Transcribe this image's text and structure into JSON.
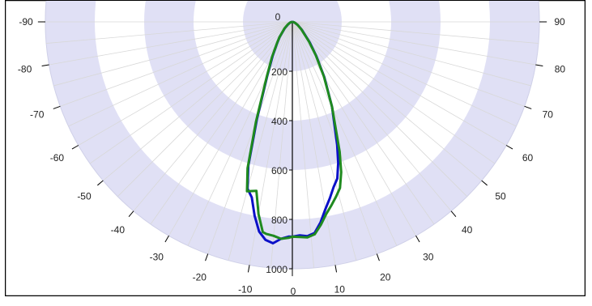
{
  "chart_data": {
    "type": "polar-line",
    "angle_axis": {
      "ticks": [
        -90,
        -80,
        -70,
        -60,
        -50,
        -40,
        -30,
        -20,
        -10,
        0,
        10,
        20,
        30,
        40,
        50,
        60,
        70,
        80,
        90
      ],
      "range": [
        -90,
        90
      ],
      "direction": "down"
    },
    "radial_axis": {
      "ticks": [
        0,
        200,
        400,
        600,
        800,
        1000
      ],
      "range": [
        0,
        1000
      ],
      "grid": true,
      "band_fill": "#e0e0f5"
    },
    "series": [
      {
        "color": "#0b10c8",
        "points": [
          [
            -90,
            0
          ],
          [
            -80,
            5
          ],
          [
            -70,
            10
          ],
          [
            -60,
            20
          ],
          [
            -50,
            40
          ],
          [
            -40,
            80
          ],
          [
            -35,
            110
          ],
          [
            -30,
            160
          ],
          [
            -25,
            240
          ],
          [
            -20,
            420
          ],
          [
            -17,
            610
          ],
          [
            -15,
            700
          ],
          [
            -13,
            730
          ],
          [
            -11,
            800
          ],
          [
            -9,
            860
          ],
          [
            -7,
            890
          ],
          [
            -5,
            900
          ],
          [
            -3,
            880
          ],
          [
            -1,
            870
          ],
          [
            0,
            870
          ],
          [
            2,
            865
          ],
          [
            4,
            870
          ],
          [
            6,
            860
          ],
          [
            8,
            820
          ],
          [
            10,
            770
          ],
          [
            12,
            730
          ],
          [
            14,
            690
          ],
          [
            16,
            660
          ],
          [
            18,
            600
          ],
          [
            20,
            530
          ],
          [
            25,
            380
          ],
          [
            30,
            260
          ],
          [
            35,
            170
          ],
          [
            40,
            110
          ],
          [
            50,
            50
          ],
          [
            60,
            25
          ],
          [
            70,
            12
          ],
          [
            80,
            5
          ],
          [
            90,
            0
          ]
        ]
      },
      {
        "color": "#1f8a1f",
        "points": [
          [
            -90,
            0
          ],
          [
            -80,
            5
          ],
          [
            -70,
            10
          ],
          [
            -60,
            22
          ],
          [
            -50,
            42
          ],
          [
            -40,
            82
          ],
          [
            -35,
            112
          ],
          [
            -30,
            165
          ],
          [
            -25,
            245
          ],
          [
            -20,
            430
          ],
          [
            -17,
            620
          ],
          [
            -15,
            710
          ],
          [
            -12,
            700
          ],
          [
            -10,
            790
          ],
          [
            -8,
            860
          ],
          [
            -7,
            865
          ],
          [
            -5,
            870
          ],
          [
            -3,
            880
          ],
          [
            -1,
            875
          ],
          [
            0,
            870
          ],
          [
            2,
            872
          ],
          [
            4,
            875
          ],
          [
            6,
            865
          ],
          [
            8,
            830
          ],
          [
            10,
            790
          ],
          [
            12,
            760
          ],
          [
            14,
            730
          ],
          [
            16,
            700
          ],
          [
            18,
            640
          ],
          [
            20,
            560
          ],
          [
            25,
            380
          ],
          [
            30,
            255
          ],
          [
            35,
            165
          ],
          [
            40,
            105
          ],
          [
            50,
            48
          ],
          [
            60,
            24
          ],
          [
            70,
            11
          ],
          [
            80,
            5
          ],
          [
            90,
            0
          ]
        ]
      }
    ],
    "title": "",
    "legend": "none"
  }
}
